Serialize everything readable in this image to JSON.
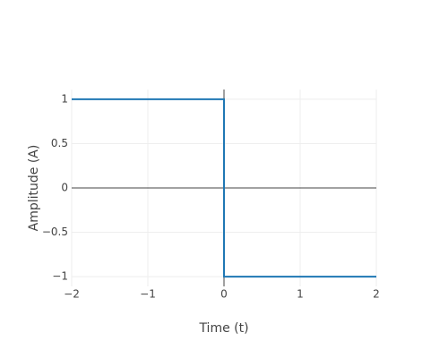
{
  "chart_data": {
    "type": "line",
    "x_label": "Time (t)",
    "y_label": "Amplitude (A)",
    "x": [
      -2,
      0,
      0,
      2
    ],
    "series": [
      {
        "color": "#1f77b4",
        "values": [
          1,
          1,
          -1,
          -1
        ]
      }
    ],
    "xlim": [
      -2,
      2
    ],
    "ylim": [
      -1.11,
      1.11
    ],
    "xticks": [
      {
        "value": -2,
        "label": "−2"
      },
      {
        "value": -1,
        "label": "−1"
      },
      0,
      1,
      2
    ],
    "yticks": [
      {
        "value": -1,
        "label": "−1"
      },
      {
        "value": -0.5,
        "label": "−0.5"
      },
      0,
      0.5,
      1
    ],
    "grid": true,
    "zeroline": true
  }
}
